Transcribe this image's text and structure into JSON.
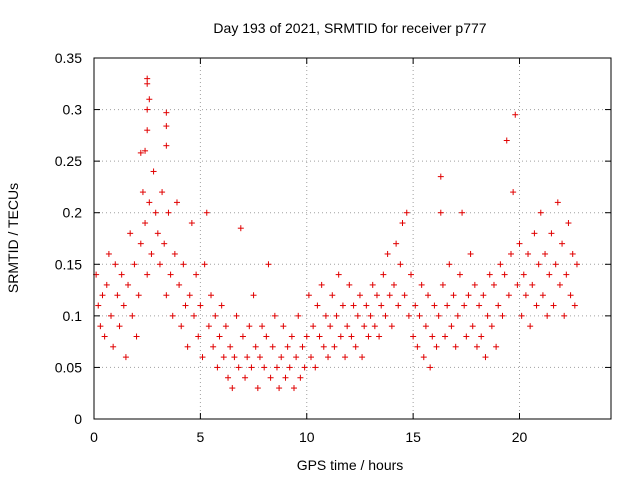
{
  "chart_data": {
    "type": "scatter",
    "title": "Day 193 of 2021, SRMTID for receiver p777",
    "xlabel": "GPS time / hours",
    "ylabel": "SRMTID / TECUs",
    "xlim": [
      0,
      24.3
    ],
    "ylim": [
      0,
      0.35
    ],
    "x_ticks": [
      0,
      5,
      10,
      15,
      20
    ],
    "x_tick_labels": [
      "0",
      "5",
      "10",
      "15",
      "20"
    ],
    "y_ticks": [
      0,
      0.05,
      0.1,
      0.15,
      0.2,
      0.25,
      0.3,
      0.35
    ],
    "y_tick_labels": [
      "0",
      "0.05",
      "0.1",
      "0.15",
      "0.2",
      "0.25",
      "0.3",
      "0.35"
    ],
    "grid": true,
    "marker": "plus",
    "color": "#e00000",
    "series": [
      {
        "name": "SRMTID",
        "points": [
          [
            0.1,
            0.14
          ],
          [
            0.2,
            0.11
          ],
          [
            0.3,
            0.09
          ],
          [
            0.4,
            0.12
          ],
          [
            0.5,
            0.08
          ],
          [
            0.6,
            0.13
          ],
          [
            0.7,
            0.16
          ],
          [
            0.8,
            0.1
          ],
          [
            0.9,
            0.07
          ],
          [
            1.0,
            0.15
          ],
          [
            1.1,
            0.12
          ],
          [
            1.2,
            0.09
          ],
          [
            1.3,
            0.14
          ],
          [
            1.4,
            0.11
          ],
          [
            1.5,
            0.06
          ],
          [
            1.6,
            0.13
          ],
          [
            1.7,
            0.18
          ],
          [
            1.8,
            0.1
          ],
          [
            1.9,
            0.15
          ],
          [
            2.0,
            0.08
          ],
          [
            2.1,
            0.12
          ],
          [
            2.2,
            0.17
          ],
          [
            2.3,
            0.22
          ],
          [
            2.4,
            0.19
          ],
          [
            2.5,
            0.14
          ],
          [
            2.6,
            0.21
          ],
          [
            2.7,
            0.16
          ],
          [
            2.8,
            0.24
          ],
          [
            2.9,
            0.2
          ],
          [
            3.0,
            0.18
          ],
          [
            2.4,
            0.26
          ],
          [
            2.5,
            0.28
          ],
          [
            2.5,
            0.3
          ],
          [
            2.5,
            0.33
          ],
          [
            2.5,
            0.325
          ],
          [
            3.4,
            0.297
          ],
          [
            3.4,
            0.284
          ],
          [
            3.4,
            0.265
          ],
          [
            2.2,
            0.258
          ],
          [
            2.6,
            0.31
          ],
          [
            3.1,
            0.15
          ],
          [
            3.2,
            0.22
          ],
          [
            3.3,
            0.17
          ],
          [
            3.4,
            0.12
          ],
          [
            3.5,
            0.2
          ],
          [
            3.6,
            0.14
          ],
          [
            3.7,
            0.1
          ],
          [
            3.8,
            0.16
          ],
          [
            3.9,
            0.21
          ],
          [
            4.0,
            0.13
          ],
          [
            4.1,
            0.09
          ],
          [
            4.2,
            0.15
          ],
          [
            4.3,
            0.11
          ],
          [
            4.4,
            0.07
          ],
          [
            4.5,
            0.12
          ],
          [
            4.6,
            0.19
          ],
          [
            4.7,
            0.1
          ],
          [
            4.8,
            0.14
          ],
          [
            4.9,
            0.08
          ],
          [
            5.0,
            0.11
          ],
          [
            5.1,
            0.06
          ],
          [
            5.2,
            0.15
          ],
          [
            5.3,
            0.2
          ],
          [
            5.4,
            0.09
          ],
          [
            5.5,
            0.12
          ],
          [
            5.6,
            0.07
          ],
          [
            5.7,
            0.1
          ],
          [
            5.8,
            0.05
          ],
          [
            5.9,
            0.08
          ],
          [
            6.0,
            0.11
          ],
          [
            6.1,
            0.06
          ],
          [
            6.2,
            0.09
          ],
          [
            6.3,
            0.04
          ],
          [
            6.4,
            0.07
          ],
          [
            6.5,
            0.03
          ],
          [
            6.6,
            0.06
          ],
          [
            6.7,
            0.1
          ],
          [
            6.8,
            0.05
          ],
          [
            6.9,
            0.185
          ],
          [
            7.0,
            0.08
          ],
          [
            7.1,
            0.04
          ],
          [
            7.2,
            0.06
          ],
          [
            7.3,
            0.09
          ],
          [
            7.4,
            0.05
          ],
          [
            7.5,
            0.12
          ],
          [
            7.6,
            0.07
          ],
          [
            7.7,
            0.03
          ],
          [
            7.8,
            0.06
          ],
          [
            7.9,
            0.09
          ],
          [
            8.0,
            0.05
          ],
          [
            8.1,
            0.08
          ],
          [
            8.2,
            0.15
          ],
          [
            8.3,
            0.04
          ],
          [
            8.4,
            0.07
          ],
          [
            8.5,
            0.1
          ],
          [
            8.6,
            0.05
          ],
          [
            8.7,
            0.03
          ],
          [
            8.8,
            0.06
          ],
          [
            8.9,
            0.09
          ],
          [
            9.0,
            0.04
          ],
          [
            9.1,
            0.07
          ],
          [
            9.2,
            0.05
          ],
          [
            9.3,
            0.08
          ],
          [
            9.4,
            0.03
          ],
          [
            9.5,
            0.06
          ],
          [
            9.6,
            0.1
          ],
          [
            9.7,
            0.04
          ],
          [
            9.8,
            0.07
          ],
          [
            9.9,
            0.05
          ],
          [
            10.0,
            0.08
          ],
          [
            10.1,
            0.12
          ],
          [
            10.2,
            0.06
          ],
          [
            10.3,
            0.09
          ],
          [
            10.4,
            0.05
          ],
          [
            10.5,
            0.11
          ],
          [
            10.6,
            0.08
          ],
          [
            10.7,
            0.13
          ],
          [
            10.8,
            0.07
          ],
          [
            10.9,
            0.1
          ],
          [
            11.0,
            0.06
          ],
          [
            11.1,
            0.09
          ],
          [
            11.2,
            0.12
          ],
          [
            11.3,
            0.07
          ],
          [
            11.4,
            0.1
          ],
          [
            11.5,
            0.14
          ],
          [
            11.6,
            0.08
          ],
          [
            11.7,
            0.11
          ],
          [
            11.8,
            0.06
          ],
          [
            11.9,
            0.09
          ],
          [
            12.0,
            0.13
          ],
          [
            12.1,
            0.08
          ],
          [
            12.2,
            0.11
          ],
          [
            12.3,
            0.07
          ],
          [
            12.4,
            0.1
          ],
          [
            12.5,
            0.12
          ],
          [
            12.6,
            0.06
          ],
          [
            12.7,
            0.09
          ],
          [
            12.8,
            0.11
          ],
          [
            12.9,
            0.08
          ],
          [
            13.0,
            0.1
          ],
          [
            13.1,
            0.13
          ],
          [
            13.2,
            0.09
          ],
          [
            13.3,
            0.12
          ],
          [
            13.4,
            0.08
          ],
          [
            13.5,
            0.11
          ],
          [
            13.6,
            0.14
          ],
          [
            13.7,
            0.1
          ],
          [
            13.8,
            0.16
          ],
          [
            13.9,
            0.12
          ],
          [
            14.0,
            0.09
          ],
          [
            14.1,
            0.13
          ],
          [
            14.2,
            0.17
          ],
          [
            14.3,
            0.11
          ],
          [
            14.4,
            0.15
          ],
          [
            14.5,
            0.19
          ],
          [
            14.6,
            0.12
          ],
          [
            14.7,
            0.2
          ],
          [
            14.8,
            0.1
          ],
          [
            14.9,
            0.14
          ],
          [
            15.0,
            0.08
          ],
          [
            15.1,
            0.11
          ],
          [
            15.2,
            0.07
          ],
          [
            15.3,
            0.1
          ],
          [
            15.4,
            0.13
          ],
          [
            15.5,
            0.06
          ],
          [
            15.6,
            0.09
          ],
          [
            15.7,
            0.12
          ],
          [
            15.8,
            0.05
          ],
          [
            15.9,
            0.08
          ],
          [
            16.0,
            0.11
          ],
          [
            16.1,
            0.07
          ],
          [
            16.2,
            0.1
          ],
          [
            16.3,
            0.235
          ],
          [
            16.3,
            0.2
          ],
          [
            16.4,
            0.13
          ],
          [
            16.5,
            0.08
          ],
          [
            16.6,
            0.11
          ],
          [
            16.7,
            0.15
          ],
          [
            16.8,
            0.09
          ],
          [
            16.9,
            0.12
          ],
          [
            17.0,
            0.07
          ],
          [
            17.1,
            0.1
          ],
          [
            17.2,
            0.14
          ],
          [
            17.3,
            0.2
          ],
          [
            17.4,
            0.11
          ],
          [
            17.5,
            0.08
          ],
          [
            17.6,
            0.12
          ],
          [
            17.7,
            0.16
          ],
          [
            17.8,
            0.09
          ],
          [
            17.9,
            0.13
          ],
          [
            18.0,
            0.07
          ],
          [
            18.1,
            0.11
          ],
          [
            18.2,
            0.08
          ],
          [
            18.3,
            0.12
          ],
          [
            18.4,
            0.06
          ],
          [
            18.5,
            0.1
          ],
          [
            18.6,
            0.14
          ],
          [
            18.7,
            0.09
          ],
          [
            18.8,
            0.13
          ],
          [
            18.9,
            0.07
          ],
          [
            19.0,
            0.11
          ],
          [
            19.1,
            0.15
          ],
          [
            19.2,
            0.1
          ],
          [
            19.3,
            0.14
          ],
          [
            19.4,
            0.27
          ],
          [
            19.5,
            0.12
          ],
          [
            19.6,
            0.16
          ],
          [
            19.7,
            0.22
          ],
          [
            19.8,
            0.295
          ],
          [
            19.9,
            0.13
          ],
          [
            20.0,
            0.17
          ],
          [
            20.1,
            0.1
          ],
          [
            20.2,
            0.14
          ],
          [
            20.3,
            0.12
          ],
          [
            20.4,
            0.16
          ],
          [
            20.5,
            0.09
          ],
          [
            20.6,
            0.13
          ],
          [
            20.7,
            0.18
          ],
          [
            20.8,
            0.11
          ],
          [
            20.9,
            0.15
          ],
          [
            21.0,
            0.2
          ],
          [
            21.1,
            0.12
          ],
          [
            21.2,
            0.16
          ],
          [
            21.3,
            0.1
          ],
          [
            21.4,
            0.14
          ],
          [
            21.5,
            0.18
          ],
          [
            21.6,
            0.11
          ],
          [
            21.7,
            0.15
          ],
          [
            21.8,
            0.21
          ],
          [
            21.9,
            0.13
          ],
          [
            22.0,
            0.17
          ],
          [
            22.1,
            0.1
          ],
          [
            22.2,
            0.14
          ],
          [
            22.3,
            0.19
          ],
          [
            22.4,
            0.12
          ],
          [
            22.5,
            0.16
          ],
          [
            22.6,
            0.11
          ],
          [
            22.7,
            0.15
          ]
        ]
      }
    ]
  }
}
